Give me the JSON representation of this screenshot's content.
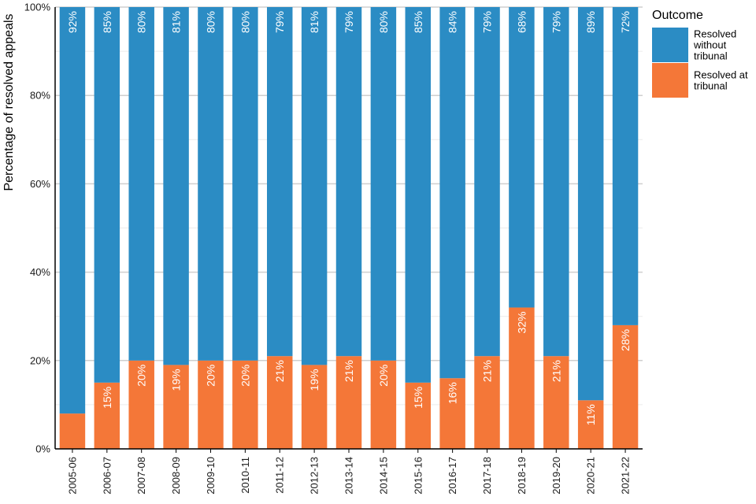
{
  "chart_data": {
    "type": "bar",
    "stacked": true,
    "title": "",
    "xlabel": "",
    "ylabel": "Percentage of resolved appeals",
    "ylim": [
      0,
      100
    ],
    "y_ticks": [
      "0%",
      "20%",
      "40%",
      "60%",
      "80%",
      "100%"
    ],
    "categories": [
      "2005-06",
      "2006-07",
      "2007-08",
      "2008-09",
      "2009-10",
      "2010-11",
      "2011-12",
      "2012-13",
      "2013-14",
      "2014-15",
      "2015-16",
      "2016-17",
      "2017-18",
      "2018-19",
      "2019-20",
      "2020-21",
      "2021-22"
    ],
    "series": [
      {
        "name": "Resolved at tribunal",
        "color": "#f47738",
        "values": [
          8,
          15,
          20,
          19,
          20,
          20,
          21,
          19,
          21,
          20,
          15,
          16,
          21,
          32,
          21,
          11,
          28
        ],
        "labels": [
          "",
          "15%",
          "20%",
          "19%",
          "20%",
          "20%",
          "21%",
          "19%",
          "21%",
          "20%",
          "15%",
          "16%",
          "21%",
          "32%",
          "21%",
          "11%",
          "28%"
        ]
      },
      {
        "name": "Resolved without tribunal",
        "color": "#2b8cc4",
        "values": [
          92,
          85,
          80,
          81,
          80,
          80,
          79,
          81,
          79,
          80,
          85,
          84,
          79,
          68,
          79,
          89,
          72
        ],
        "labels": [
          "92%",
          "85%",
          "80%",
          "81%",
          "80%",
          "80%",
          "79%",
          "81%",
          "79%",
          "80%",
          "85%",
          "84%",
          "79%",
          "68%",
          "79%",
          "89%",
          "72%"
        ]
      }
    ],
    "legend": {
      "title": "Outcome",
      "position": "top-right",
      "items": [
        {
          "label_lines": [
            "Resolved",
            "without",
            "tribunal"
          ],
          "color": "#2b8cc4"
        },
        {
          "label_lines": [
            "Resolved at",
            "tribunal"
          ],
          "color": "#f47738"
        }
      ]
    }
  }
}
